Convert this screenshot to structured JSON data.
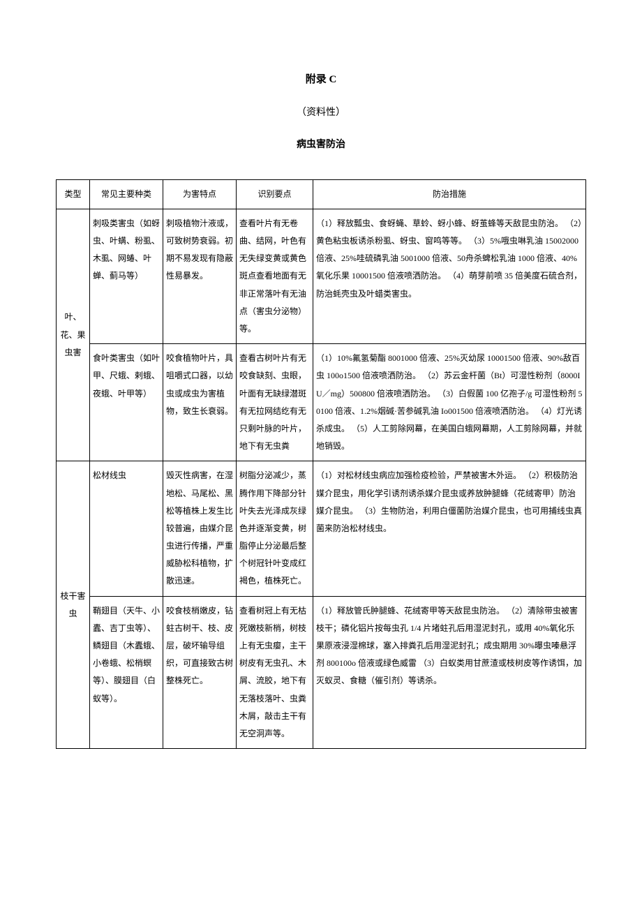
{
  "heading": {
    "appendix": "附录 C",
    "nature": "（资料性）",
    "title": "病虫害防治"
  },
  "columns": {
    "type": "类型",
    "species": "常见主要种类",
    "harm": "为害特点",
    "identify": "识别要点",
    "control": "防治措施"
  },
  "groups": [
    {
      "type_label": "叶、花、果虫害",
      "rows": [
        {
          "species": "刺吸类害虫（如蚜虫、叶螨、粉虱、木虱、网蝽、叶蝉、蓟马等）",
          "harm": "刺吸植物汁液或，可致树势衰弱。初期不易发现有隐蔽性易暴发。",
          "identify": "查看叶片有无卷曲、结网，叶色有无失绿变黄或黄色斑点查看地面有无非正常落叶有无油点（害虫分泌物）等。",
          "control": "（1）释放瓢虫、食蚜蝇、草蛉、蚜小蜂、蚜茧蜂等天敌昆虫防治。\n（2）黄色粘虫板诱杀粉虱、蚜虫、窗鸣等等。\n（3）5%哦虫啉乳油 15002000 倍液、25%哇硫磷乳油 5001000 倍液、50舟杀蜱松乳油 1000 倍液、40%氧化乐果 10001500 倍液喷洒防治。\n（4）萌芽前喷 35 倍美度石硫合剂，防治蚝壳虫及叶蜡类害虫。"
        },
        {
          "species": "食叶类害虫（如叶甲、尺蛾、剌蛾、夜蛾、叶甲等）",
          "harm": "咬食植物叶片，具咀嚼式口器，以幼虫或成虫为害植物，致生长衰弱。",
          "identify": "查看古树叶片有无咬食缺刻、虫眼，叶面有无缺绿潜斑有无拉网结纥有无只剩叶脉的叶片，地下有无虫粪",
          "control": "（1）10%氟氢菊酯 8001000 倍液、25%灭幼尿 10001500 倍液、90%敌百虫 100o1500 倍液喷洒防治。\n（2）苏云金杆菌（Bt）可湿性粉剂（8000IU／mg）500800 倍液喷洒防治。\n（3）白假菌 100 亿孢子/g 可湿性粉剂 50100 倍液、1.2%烟碱·苦参碱乳油 Io001500 倍液喷洒防治。\n（4）灯光诱杀成虫。\n（5）人工剪除网幕，在美国白蛾网幕期，人工剪除网幕，并就地销毁。"
        }
      ]
    },
    {
      "type_label": "枝干害虫",
      "rows": [
        {
          "species": "松材线虫",
          "harm": "毁灭性病害，在湿地松、马尾松、黑松等植株上发生比较普遍，由媒介昆虫进行传播，严重威胁松科植物，扩散迅速。",
          "identify": "树脂分泌减少，蒸腾作用下降部分针叶失去光泽成灰绿色并逐渐变黄，树脂停止分泌最后整个树冠针叶变成红褐色，植株死亡。",
          "control": "（1）对松材线虫病应加强检疫检验，严禁被害木外运。\n（2）积极防治媒介昆虫，用化学引诱剂诱杀媒介昆虫或养放肿腿蜂（花绒寄甲）防治媒介昆虫。\n（3）生物防治，利用白僵菌防治媒介昆虫，也可用捕线虫真菌来防治松材线虫。"
        },
        {
          "species": "鞘翅目（天牛、小蠹、吉丁虫等）、鳞翅目（木蠹蛾、小卷蛾、松梢螟等）、膜翅目（白蚁等）。",
          "harm": "咬食枝梢嫩皮，钻蛀古树干、枝、皮层，破坏输导组织，可直接致古树整株死亡。",
          "identify": "查看树冠上有无枯死嫩枝新梢，树枝上有无虫瘿，主干树皮有无虫孔、木屑、流胶，地下有无落枝落叶、虫粪木屑，敲击主干有无空洞声等。",
          "control": "（1）释放管氏肿腿蜂、花绒寄甲等天敌昆虫防治。\n（2）清除带虫被害枝干；磷化铝片按每虫孔 1/4 片堵蛀孔后用湿泥封孔，或用 40%氧化乐果原液浸湿棉球，塞入排粪孔后用湿泥封孔；成虫期用 30%曝虫嗪悬浮剂 800100o 倍液或绿色威雷\n（3）白蚁类用甘蔗渣或枝树皮等作诱饵，加灭蚁灵、食糖（催引剂）等诱杀。"
        }
      ]
    }
  ]
}
